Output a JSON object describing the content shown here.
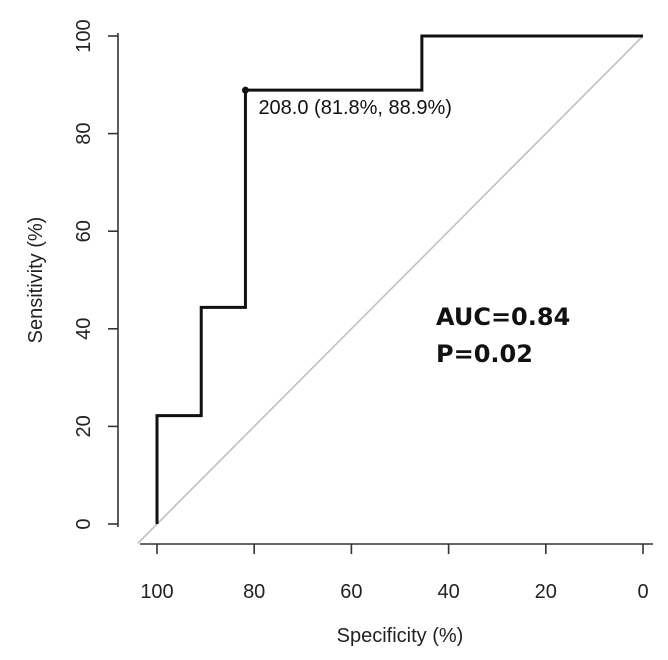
{
  "chart_data": {
    "type": "line",
    "title": "",
    "xlabel": "Specificity (%)",
    "ylabel": "Sensitivity (%)",
    "x_reversed": true,
    "xlim": [
      0,
      100
    ],
    "ylim": [
      0,
      100
    ],
    "xticks": [
      100,
      80,
      60,
      40,
      20,
      0
    ],
    "yticks": [
      0,
      20,
      40,
      60,
      80,
      100
    ],
    "grid": false,
    "series": [
      {
        "name": "",
        "color": "#111111",
        "points": [
          {
            "x": 100,
            "y": 0
          },
          {
            "x": 100,
            "y": 22.2
          },
          {
            "x": 90.9,
            "y": 22.2
          },
          {
            "x": 90.9,
            "y": 44.4
          },
          {
            "x": 81.8,
            "y": 44.4
          },
          {
            "x": 81.8,
            "y": 88.9
          },
          {
            "x": 45.5,
            "y": 88.9
          },
          {
            "x": 45.5,
            "y": 100
          },
          {
            "x": 0,
            "y": 100
          }
        ]
      }
    ],
    "reference_line": {
      "from": [
        100,
        0
      ],
      "to": [
        0,
        100
      ],
      "color": "#c0c0c0"
    },
    "annotations": [
      {
        "x": 81.8,
        "y": 88.9,
        "text": "208.0 (81.8%, 88.9%)"
      }
    ],
    "stats": [
      "AUC=0.84",
      "P=0.02"
    ]
  }
}
